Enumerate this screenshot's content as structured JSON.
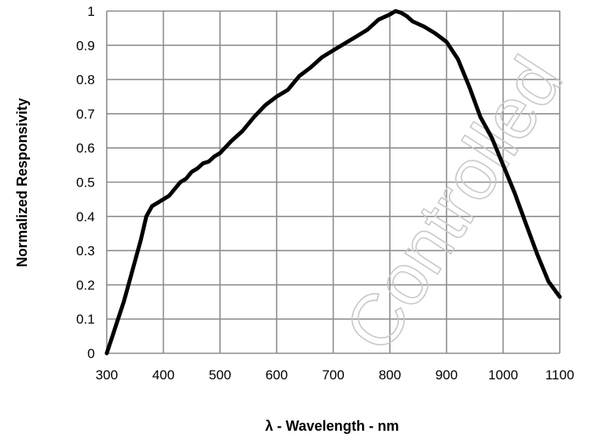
{
  "chart_data": {
    "type": "line",
    "xlabel": "λ - Wavelength - nm",
    "ylabel": "Normalized Responsivity",
    "xlim": [
      300,
      1100
    ],
    "ylim": [
      0,
      1
    ],
    "x_ticks": [
      "300",
      "400",
      "500",
      "600",
      "700",
      "800",
      "900",
      "1000",
      "1100"
    ],
    "y_ticks": [
      "0",
      "0.1",
      "0.2",
      "0.3",
      "0.4",
      "0.5",
      "0.6",
      "0.7",
      "0.8",
      "0.9",
      "1"
    ],
    "grid": true,
    "series": [
      {
        "x": [
          300,
          310,
          320,
          330,
          340,
          350,
          360,
          370,
          380,
          390,
          400,
          410,
          420,
          430,
          440,
          450,
          460,
          470,
          480,
          490,
          500,
          520,
          540,
          560,
          580,
          600,
          620,
          640,
          660,
          680,
          700,
          720,
          740,
          760,
          780,
          800,
          810,
          820,
          830,
          840,
          860,
          880,
          900,
          920,
          940,
          960,
          980,
          1000,
          1020,
          1040,
          1060,
          1080,
          1100
        ],
        "y": [
          0.0,
          0.05,
          0.1,
          0.15,
          0.21,
          0.27,
          0.33,
          0.4,
          0.43,
          0.44,
          0.45,
          0.46,
          0.48,
          0.5,
          0.51,
          0.53,
          0.54,
          0.555,
          0.56,
          0.575,
          0.585,
          0.62,
          0.65,
          0.69,
          0.725,
          0.75,
          0.77,
          0.81,
          0.835,
          0.865,
          0.885,
          0.905,
          0.925,
          0.945,
          0.975,
          0.99,
          1.0,
          0.995,
          0.985,
          0.97,
          0.955,
          0.935,
          0.91,
          0.86,
          0.78,
          0.69,
          0.63,
          0.55,
          0.47,
          0.38,
          0.29,
          0.21,
          0.165
        ]
      }
    ],
    "watermark": "Controlled"
  }
}
